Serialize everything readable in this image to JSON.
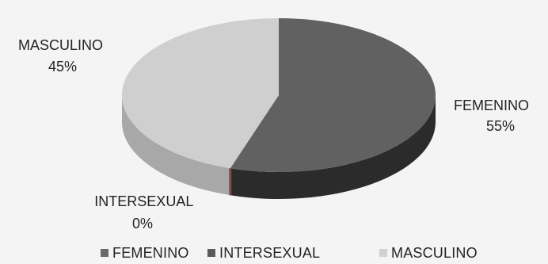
{
  "chart_data": {
    "type": "pie",
    "style": "3d",
    "title": "",
    "categories": [
      "FEMENINO",
      "INTERSEXUAL",
      "MASCULINO"
    ],
    "values": [
      55,
      0,
      45
    ],
    "value_labels": [
      "55%",
      "0%",
      "45%"
    ],
    "colors": [
      "#616161",
      "#5f5f5f",
      "#cfcfcf"
    ],
    "side_colors": [
      "#2b2b2b",
      "#4a3a3a",
      "#a8a8a8"
    ],
    "legend_position": "bottom",
    "grid": false
  }
}
